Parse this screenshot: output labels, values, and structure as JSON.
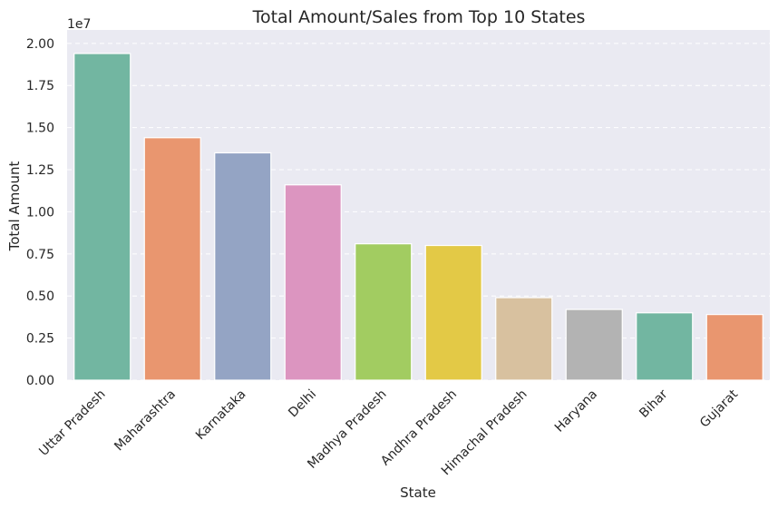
{
  "chart_data": {
    "type": "bar",
    "title": "Total Amount/Sales from Top 10 States",
    "xlabel": "State",
    "ylabel": "Total Amount",
    "y_offset_label": "1e7",
    "ylim": [
      0,
      2.08
    ],
    "yticks": [
      0.0,
      0.25,
      0.5,
      0.75,
      1.0,
      1.25,
      1.5,
      1.75,
      2.0
    ],
    "ytick_labels": [
      "0.00",
      "0.25",
      "0.50",
      "0.75",
      "1.00",
      "1.25",
      "1.50",
      "1.75",
      "2.00"
    ],
    "categories": [
      "Uttar Pradesh",
      "Maharashtra",
      "Karnataka",
      "Delhi",
      "Madhya Pradesh",
      "Andhra Pradesh",
      "Himachal Pradesh",
      "Haryana",
      "Bihar",
      "Gujarat"
    ],
    "values": [
      1.94,
      1.44,
      1.35,
      1.16,
      0.81,
      0.8,
      0.49,
      0.42,
      0.4,
      0.39
    ],
    "colors": [
      "#72b6a1",
      "#e9966f",
      "#94a4c4",
      "#dc95c0",
      "#a2cc61",
      "#e3c946",
      "#d8c19f",
      "#b3b3b3",
      "#72b6a1",
      "#e9966f"
    ],
    "grid": true,
    "background": "#eaeaf2"
  }
}
